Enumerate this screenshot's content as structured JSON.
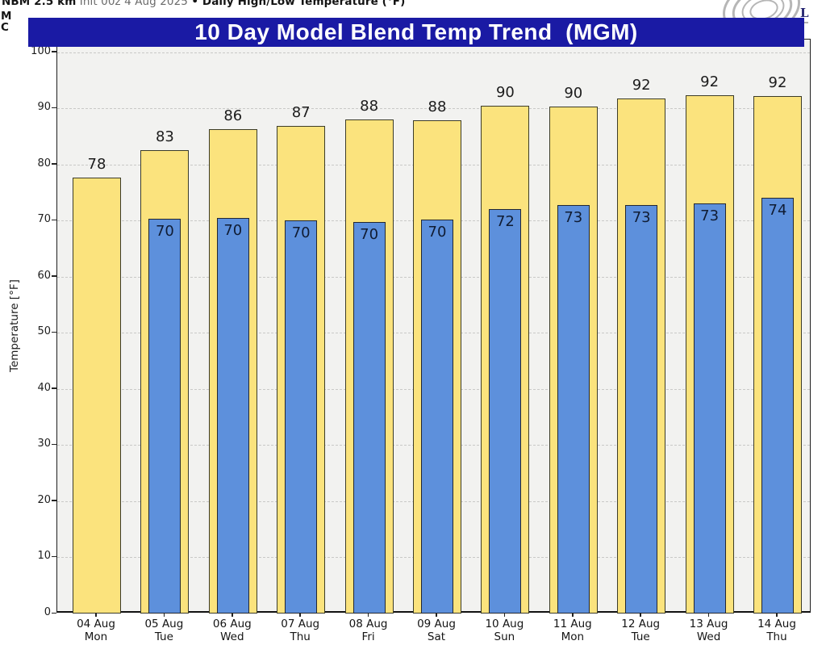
{
  "header": {
    "meta": {
      "model": "NBM 2.5 km",
      "init": " Init 00z 4 Aug 2025 ",
      "product": "• Daily High/Low Temperature (°F)"
    },
    "clipped_line_1": "M",
    "clipped_line_2": "C",
    "banner": {
      "title": "10 Day Model Blend Temp Trend  (MGM)",
      "background": "#1a1aa4",
      "text_color": "#ffffff"
    },
    "logo": {
      "letter": "L"
    }
  },
  "chart_data": {
    "type": "bar",
    "title": "10 Day Model Blend Temp Trend (MGM)",
    "ylabel": "Temperature [°F]",
    "ylim": [
      0,
      100
    ],
    "yticks": [
      0,
      10,
      20,
      30,
      40,
      50,
      60,
      70,
      80,
      90,
      100
    ],
    "grid": "horizontal-dashed",
    "legend": "none",
    "plot_background": "#f2f2f0",
    "categories": [
      {
        "date": "04 Aug",
        "day": "Mon"
      },
      {
        "date": "05 Aug",
        "day": "Tue"
      },
      {
        "date": "06 Aug",
        "day": "Wed"
      },
      {
        "date": "07 Aug",
        "day": "Thu"
      },
      {
        "date": "08 Aug",
        "day": "Fri"
      },
      {
        "date": "09 Aug",
        "day": "Sat"
      },
      {
        "date": "10 Aug",
        "day": "Sun"
      },
      {
        "date": "11 Aug",
        "day": "Mon"
      },
      {
        "date": "12 Aug",
        "day": "Tue"
      },
      {
        "date": "13 Aug",
        "day": "Wed"
      },
      {
        "date": "14 Aug",
        "day": "Thu"
      }
    ],
    "series": [
      {
        "name": "High",
        "color": "#fbe37d",
        "values": [
          78,
          83,
          86,
          87,
          88,
          88,
          90,
          90,
          92,
          92,
          92
        ],
        "bar_tops_f": [
          77.6,
          82.6,
          86.2,
          86.9,
          88.0,
          87.8,
          90.4,
          90.3,
          91.8,
          92.3,
          92.1
        ]
      },
      {
        "name": "Low",
        "color": "#5d90dc",
        "values": [
          null,
          70,
          70,
          70,
          70,
          70,
          72,
          73,
          73,
          73,
          74
        ],
        "bar_tops_f": [
          null,
          70.3,
          70.4,
          70.0,
          69.8,
          70.1,
          72.0,
          72.8,
          72.7,
          73.1,
          74.0
        ]
      }
    ]
  }
}
